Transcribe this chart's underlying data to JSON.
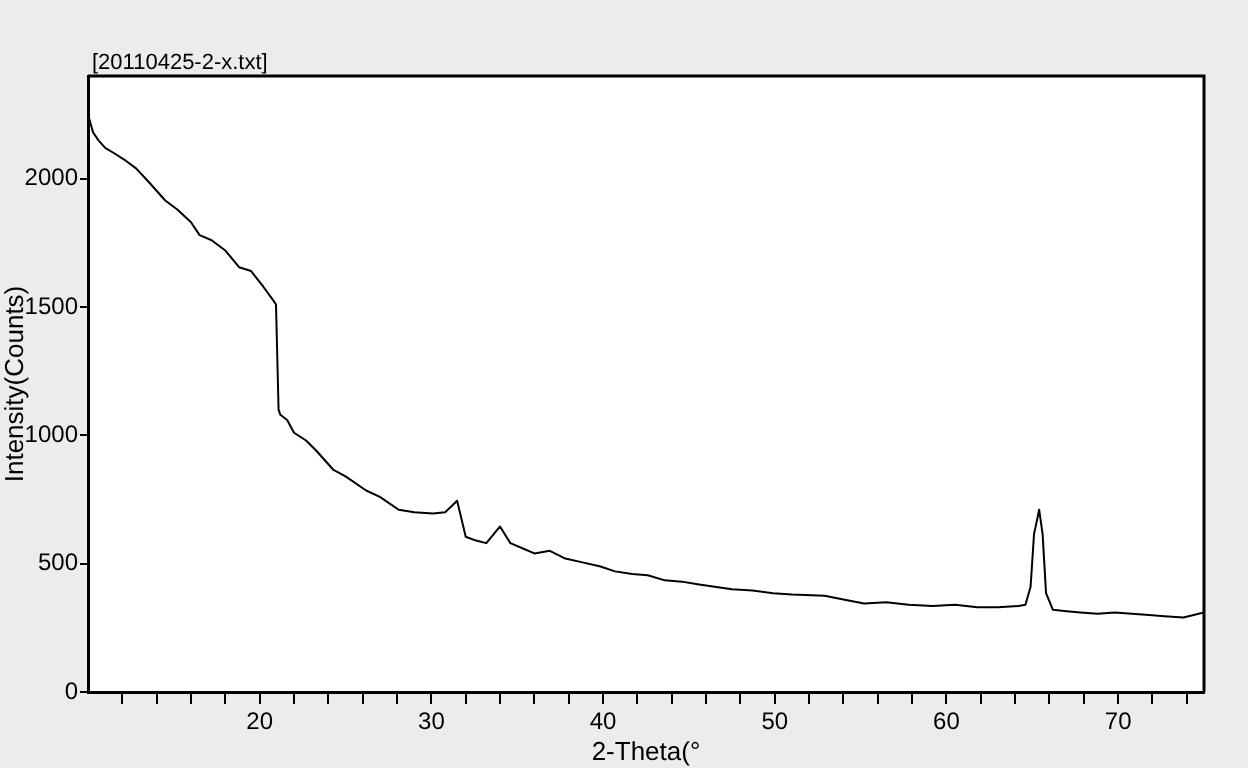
{
  "chart_data": {
    "type": "line",
    "title": "[20110425-2-x.txt]",
    "xlabel": "2-Theta(°",
    "ylabel": "Intensity(Counts)",
    "xlim": [
      10,
      75
    ],
    "ylim": [
      0,
      2400
    ],
    "xticks": [
      {
        "value": 12,
        "label": null
      },
      {
        "value": 14,
        "label": null
      },
      {
        "value": 16,
        "label": null
      },
      {
        "value": 18,
        "label": null
      },
      20,
      {
        "value": 22,
        "label": null
      },
      {
        "value": 24,
        "label": null
      },
      {
        "value": 26,
        "label": null
      },
      {
        "value": 28,
        "label": null
      },
      30,
      {
        "value": 32,
        "label": null
      },
      {
        "value": 34,
        "label": null
      },
      {
        "value": 36,
        "label": null
      },
      {
        "value": 38,
        "label": null
      },
      40,
      {
        "value": 42,
        "label": null
      },
      {
        "value": 44,
        "label": null
      },
      {
        "value": 46,
        "label": null
      },
      {
        "value": 48,
        "label": null
      },
      50,
      {
        "value": 52,
        "label": null
      },
      {
        "value": 54,
        "label": null
      },
      {
        "value": 56,
        "label": null
      },
      {
        "value": 58,
        "label": null
      },
      60,
      {
        "value": 62,
        "label": null
      },
      {
        "value": 64,
        "label": null
      },
      {
        "value": 66,
        "label": null
      },
      {
        "value": 68,
        "label": null
      },
      70,
      {
        "value": 72,
        "label": null
      },
      {
        "value": 74,
        "label": null
      }
    ],
    "yticks": [
      0,
      500,
      1000,
      1500,
      2000
    ],
    "grid": false,
    "legend": false,
    "marker": "none",
    "line_style": "solid",
    "series": [
      {
        "color": "#000000",
        "x": [
          10,
          10.3,
          10.6,
          11,
          11.5,
          12.2,
          12.8,
          13.5,
          14.5,
          15.2,
          16,
          16.5,
          17.2,
          18,
          18.8,
          19.5,
          20.2,
          20.8,
          20.95,
          21.1,
          21.2,
          21.6,
          22,
          22.7,
          23.3,
          24.3,
          25,
          26.2,
          27,
          28.1,
          29,
          30.1,
          30.8,
          31.5,
          32,
          32.6,
          33.2,
          34,
          34.6,
          35.3,
          36,
          36.9,
          37.8,
          38.8,
          39.8,
          40.7,
          41.7,
          42.6,
          43.6,
          44.6,
          45.5,
          46.5,
          47.5,
          48.7,
          49.9,
          51,
          52.9,
          54,
          55.2,
          56.5,
          57.8,
          59.2,
          60.5,
          61.8,
          63,
          64.2,
          64.6,
          64.9,
          65.1,
          65.4,
          65.6,
          65.8,
          66.2,
          67,
          67.8,
          68.8,
          69.8,
          70.8,
          71.8,
          72.7,
          73.8,
          75
        ],
        "values": [
          2250,
          2180,
          2150,
          2120,
          2100,
          2070,
          2040,
          1990,
          1915,
          1880,
          1830,
          1780,
          1760,
          1720,
          1655,
          1640,
          1580,
          1525,
          1510,
          1100,
          1080,
          1060,
          1010,
          980,
          940,
          865,
          840,
          785,
          760,
          710,
          700,
          695,
          700,
          745,
          605,
          590,
          580,
          645,
          580,
          560,
          540,
          550,
          520,
          505,
          490,
          470,
          460,
          455,
          435,
          430,
          420,
          410,
          400,
          395,
          385,
          380,
          375,
          360,
          345,
          350,
          340,
          335,
          340,
          330,
          330,
          335,
          340,
          410,
          615,
          710,
          615,
          385,
          320,
          315,
          310,
          305,
          310,
          305,
          300,
          295,
          290,
          310
        ]
      }
    ]
  }
}
